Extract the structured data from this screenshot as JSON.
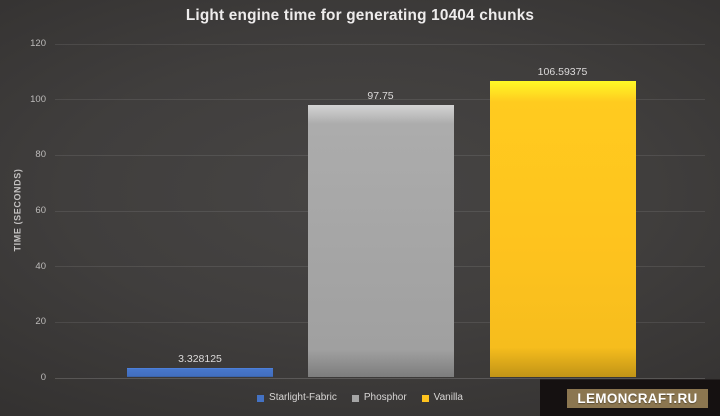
{
  "chart_data": {
    "type": "bar",
    "title": "Light engine time for generating 10404 chunks",
    "ylabel": "TIME (SECONDS)",
    "xlabel": "",
    "categories": [
      "Starlight-Fabric",
      "Phosphor",
      "Vanilla"
    ],
    "values": [
      3.328125,
      97.75,
      106.59375
    ],
    "value_labels": [
      "3.328125",
      "97.75",
      "106.59375"
    ],
    "bar_colors": [
      "#4472c4",
      "#a5a5a5",
      "#fec31e"
    ],
    "ylim": [
      0,
      120
    ],
    "yticks": [
      0,
      20,
      40,
      60,
      80,
      100,
      120
    ],
    "grid": true,
    "legend_position": "bottom-center",
    "legend": [
      {
        "label": "Starlight-Fabric",
        "color": "#4472c4"
      },
      {
        "label": "Phosphor",
        "color": "#a5a5a5"
      },
      {
        "label": "Vanilla",
        "color": "#fec31e"
      }
    ],
    "theme": {
      "background_center": "#474544",
      "background_edge": "#262423",
      "title_color": "#eeecec",
      "tick_color": "#bdbbba",
      "label_color": "#dcdada"
    }
  },
  "watermark": {
    "text": "LEMONCRAFT.RU",
    "badge_bg": "#151111",
    "label_bg": "#8b7650",
    "text_color": "#ffffff"
  }
}
